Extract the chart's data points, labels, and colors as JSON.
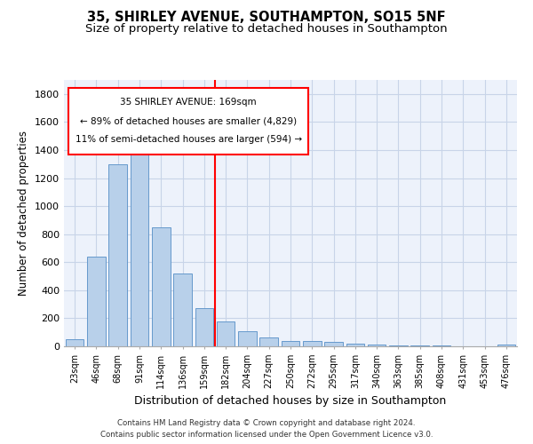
{
  "title": "35, SHIRLEY AVENUE, SOUTHAMPTON, SO15 5NF",
  "subtitle": "Size of property relative to detached houses in Southampton",
  "xlabel": "Distribution of detached houses by size in Southampton",
  "ylabel": "Number of detached properties",
  "categories": [
    "23sqm",
    "46sqm",
    "68sqm",
    "91sqm",
    "114sqm",
    "136sqm",
    "159sqm",
    "182sqm",
    "204sqm",
    "227sqm",
    "250sqm",
    "272sqm",
    "295sqm",
    "317sqm",
    "340sqm",
    "363sqm",
    "385sqm",
    "408sqm",
    "431sqm",
    "453sqm",
    "476sqm"
  ],
  "values": [
    50,
    640,
    1300,
    1370,
    850,
    520,
    275,
    175,
    105,
    65,
    40,
    35,
    30,
    20,
    15,
    8,
    8,
    5,
    3,
    2,
    12
  ],
  "bar_color": "#b8d0ea",
  "bar_edge_color": "#6699cc",
  "annotation_title": "35 SHIRLEY AVENUE: 169sqm",
  "annotation_line1": "← 89% of detached houses are smaller (4,829)",
  "annotation_line2": "11% of semi-detached houses are larger (594) →",
  "ylim": [
    0,
    1900
  ],
  "yticks": [
    0,
    200,
    400,
    600,
    800,
    1000,
    1200,
    1400,
    1600,
    1800
  ],
  "footer_line1": "Contains HM Land Registry data © Crown copyright and database right 2024.",
  "footer_line2": "Contains public sector information licensed under the Open Government Licence v3.0.",
  "background_color": "#edf2fb",
  "grid_color": "#c8d4e8",
  "title_fontsize": 10.5,
  "subtitle_fontsize": 9.5,
  "xlabel_fontsize": 9,
  "ylabel_fontsize": 8.5
}
